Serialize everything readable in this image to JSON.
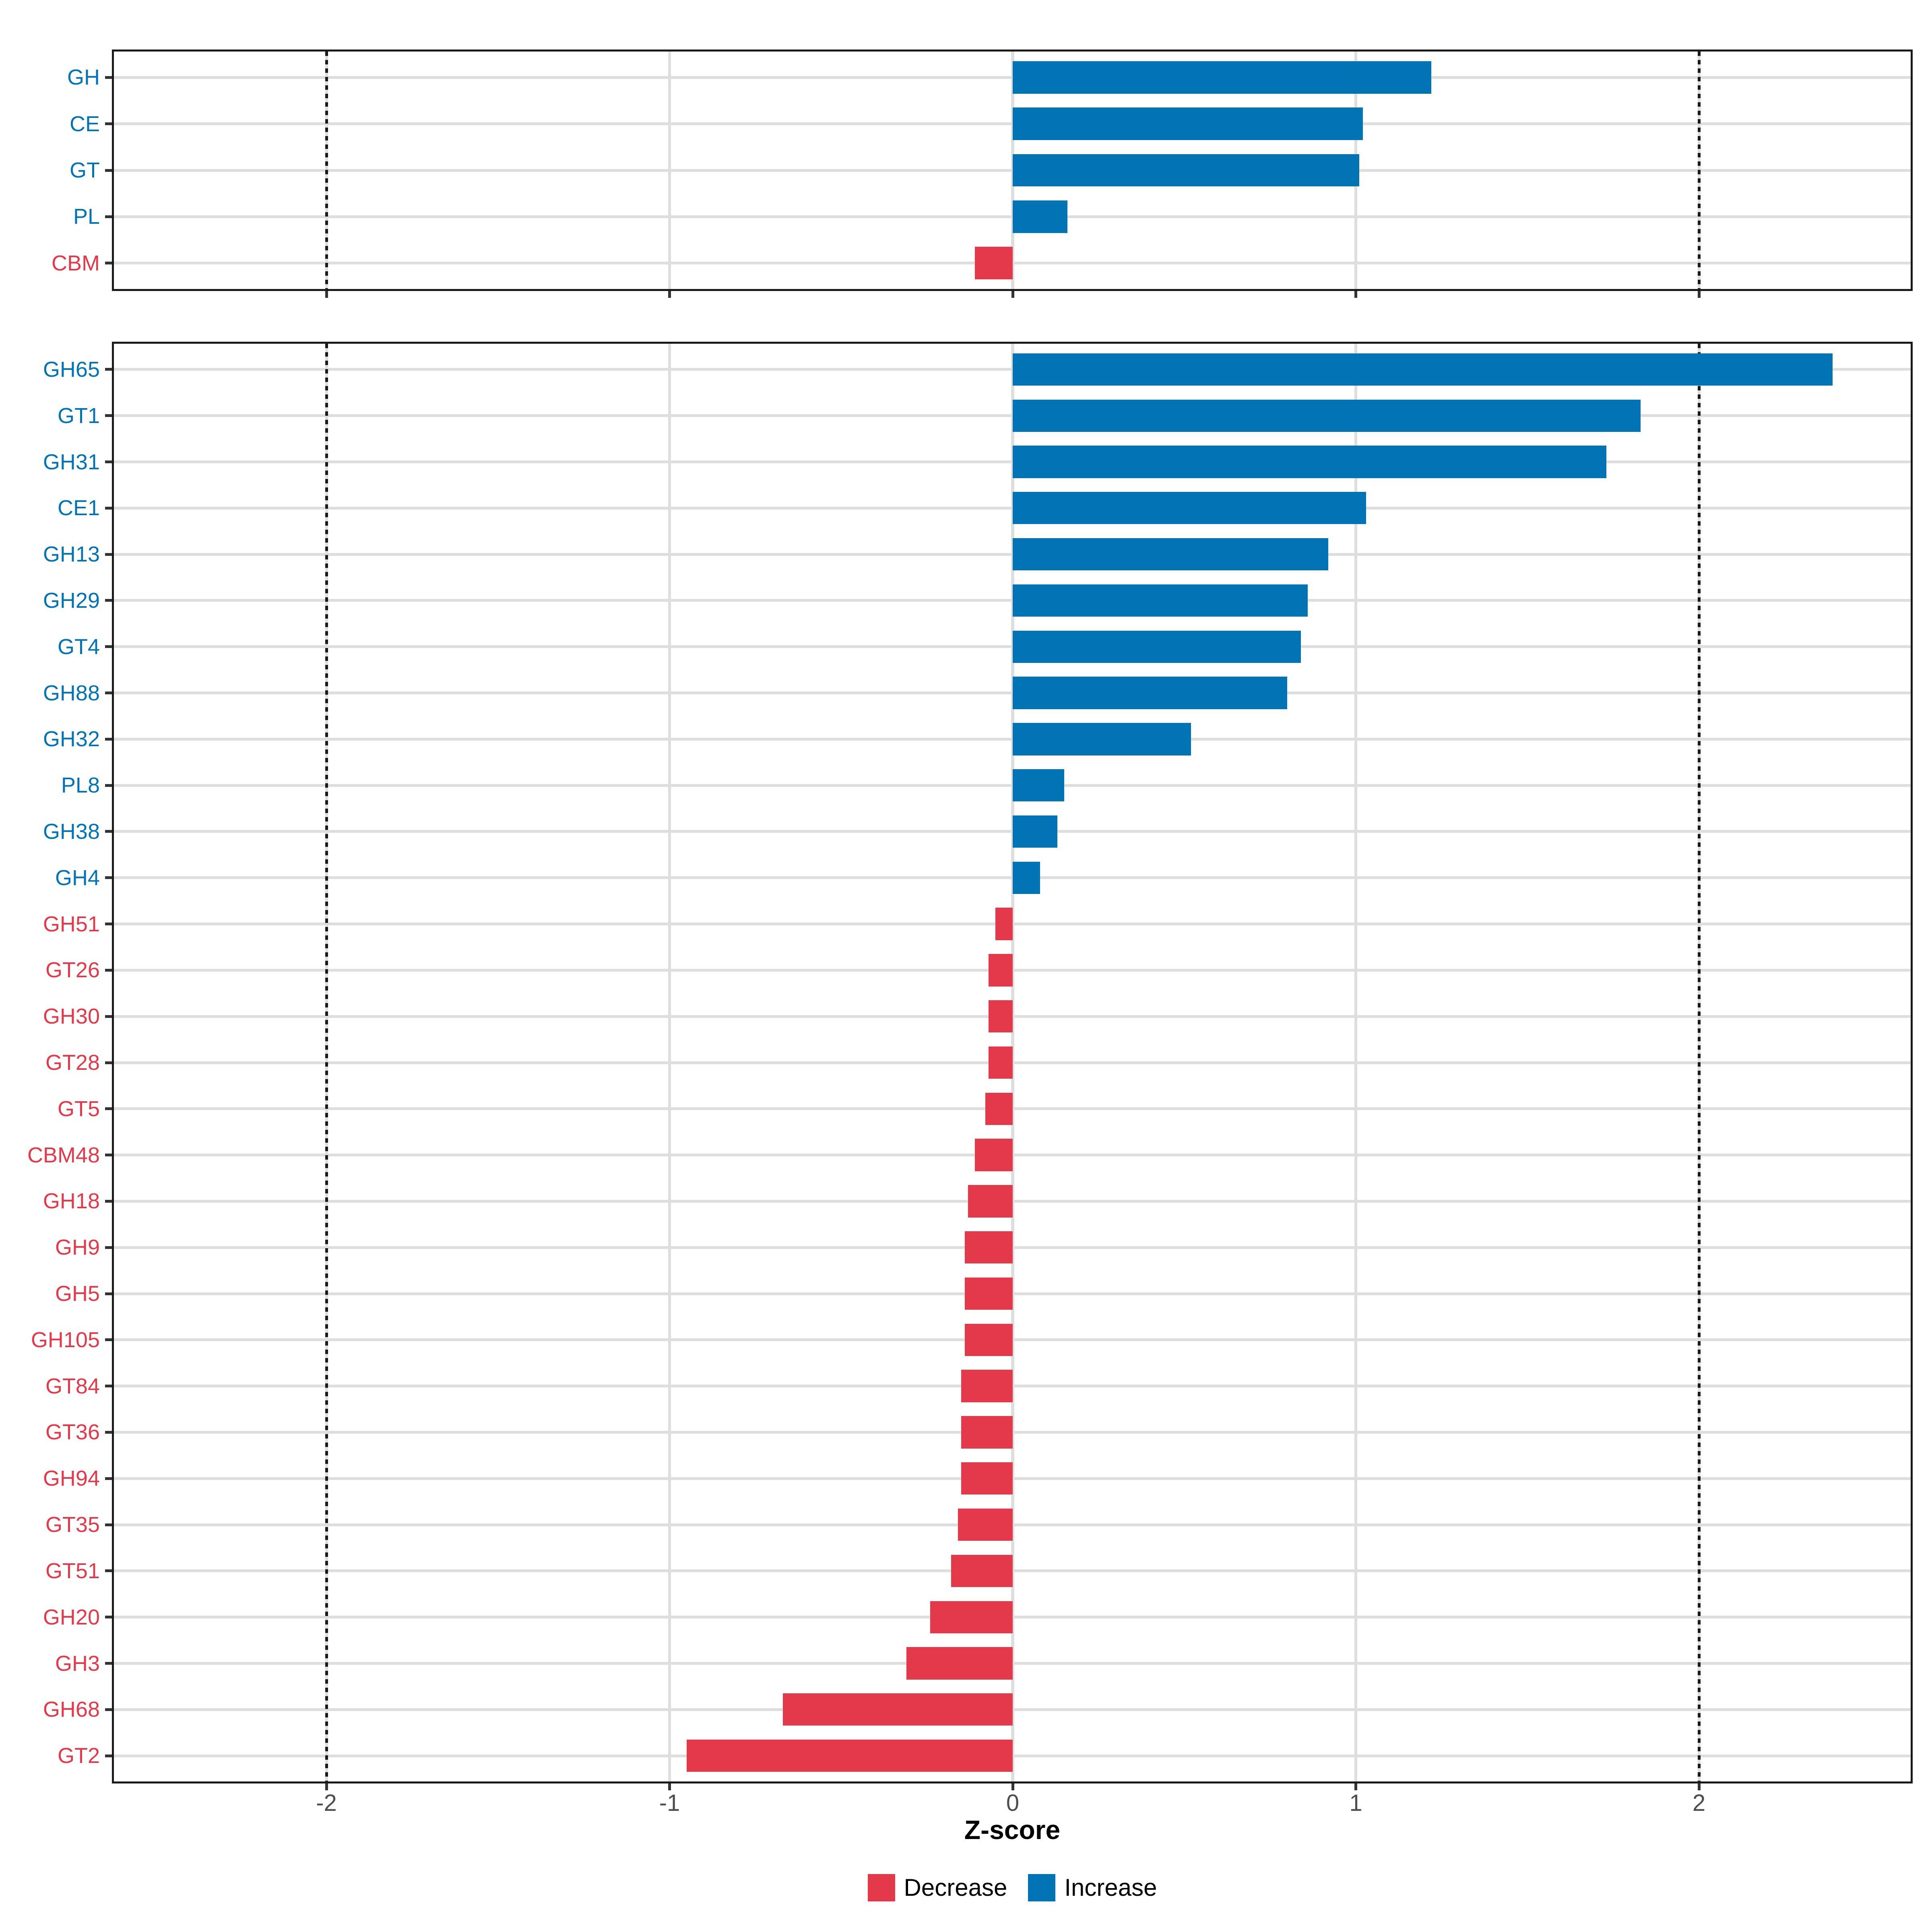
{
  "chart_data": {
    "type": "bar",
    "orientation": "horizontal",
    "title": "",
    "xlabel": "Z-score",
    "xlim": [
      -2.62,
      2.62
    ],
    "x_ticks": [
      -2,
      -1,
      0,
      1,
      2
    ],
    "x_tick_labels": [
      "-2",
      "-1",
      "0",
      "1",
      "2"
    ],
    "grid": true,
    "reference_lines": {
      "values": [
        -2,
        2
      ],
      "style": "dotted",
      "color": "#1a1a1a"
    },
    "series_colors": {
      "increase": "#0274b5",
      "decrease": "#e4394a"
    },
    "legend": {
      "position": "bottom",
      "decrease_label": "Decrease",
      "increase_label": "Increase"
    },
    "panels": [
      {
        "id": "top",
        "categories": [
          "GH",
          "CE",
          "GT",
          "PL",
          "CBM"
        ],
        "values": [
          1.22,
          1.02,
          1.01,
          0.16,
          -0.11
        ]
      },
      {
        "id": "bottom",
        "categories": [
          "GH65",
          "GT1",
          "GH31",
          "CE1",
          "GH13",
          "GH29",
          "GT4",
          "GH88",
          "GH32",
          "PL8",
          "GH38",
          "GH4",
          "GH51",
          "GT26",
          "GH30",
          "GT28",
          "GT5",
          "CBM48",
          "GH18",
          "GH9",
          "GH5",
          "GH105",
          "GT84",
          "GT36",
          "GH94",
          "GT35",
          "GT51",
          "GH20",
          "GH3",
          "GH68",
          "GT2"
        ],
        "values": [
          2.39,
          1.83,
          1.73,
          1.03,
          0.92,
          0.86,
          0.84,
          0.8,
          0.52,
          0.15,
          0.13,
          0.08,
          -0.05,
          -0.07,
          -0.07,
          -0.07,
          -0.08,
          -0.11,
          -0.13,
          -0.14,
          -0.14,
          -0.14,
          -0.15,
          -0.15,
          -0.15,
          -0.16,
          -0.18,
          -0.24,
          -0.31,
          -0.67,
          -0.95
        ]
      }
    ]
  }
}
